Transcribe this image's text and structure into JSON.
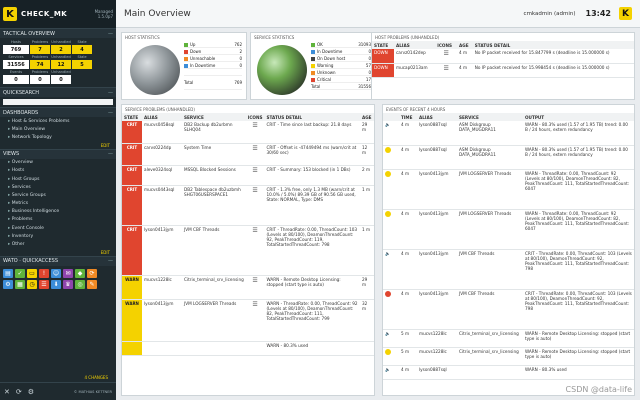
{
  "app": {
    "brand": "CHECK_MK",
    "version_line1": "Managed",
    "version_line2": "1.5.0p7"
  },
  "topbar": {
    "title": "Main Overview",
    "user": "cmkadmin (admin)",
    "clock": "13:42",
    "logo": "K"
  },
  "sidebar": {
    "tactical_title": "TACTICAL OVERVIEW",
    "tac_headers": [
      "",
      "Problems",
      "Unhandled",
      "Stale"
    ],
    "tac_rows": [
      {
        "label": "Hosts",
        "values": [
          "769",
          "7",
          "2",
          "4"
        ]
      },
      {
        "label": "Services",
        "values": [
          "31556",
          "74",
          "12",
          "5"
        ]
      },
      {
        "label": "Events",
        "values": [
          "0",
          "0",
          "0",
          ""
        ]
      }
    ],
    "tac_row_headers": [
      "Hosts",
      "Problems",
      "Unhandled",
      "Stale",
      "Services",
      "Problems",
      "Unhandled",
      "Stale",
      "Events",
      "Problems",
      "Unhandled"
    ],
    "quicksearch_title": "QUICKSEARCH",
    "dashboards_title": "DASHBOARDS",
    "dashboards": [
      "Host & Services Problems",
      "Main Overview",
      "Network Topology"
    ],
    "edit_label": "EDIT",
    "views_title": "VIEWS",
    "views": [
      "Overview",
      "Hosts",
      "Host Groups",
      "Services",
      "Service Groups",
      "Metrics",
      "Business Intelligence",
      "Problems",
      "Event Console",
      "Inventory",
      "Other"
    ],
    "quickaccess_title": "WATO · QUICKACCESS",
    "changes_label": "4 CHANGES",
    "footer_author": "© MATHIAS KETTNER"
  },
  "host_stats": {
    "title": "HOST STATISTICS",
    "rows": [
      {
        "label": "Up",
        "value": "762",
        "color": "#5fb33c"
      },
      {
        "label": "Down",
        "value": "2",
        "color": "#e0452f"
      },
      {
        "label": "Unreachable",
        "value": "0",
        "color": "#f08a24"
      },
      {
        "label": "In Downtime",
        "value": "0",
        "color": "#3c8dd8"
      },
      {
        "label": "",
        "value": "",
        "color": "#ffffff"
      },
      {
        "label": "Total",
        "value": "769",
        "color": "#ffffff"
      }
    ]
  },
  "service_stats": {
    "title": "SERVICE STATISTICS",
    "rows": [
      {
        "label": "OK",
        "value": "31093",
        "color": "#5fb33c"
      },
      {
        "label": "In Downtime",
        "value": "0",
        "color": "#3c8dd8"
      },
      {
        "label": "On Down host",
        "value": "0",
        "color": "#444444"
      },
      {
        "label": "Warning",
        "value": "57",
        "color": "#f4d200"
      },
      {
        "label": "Unknown",
        "value": "0",
        "color": "#f08a24"
      },
      {
        "label": "Critical",
        "value": "17",
        "color": "#e0452f"
      },
      {
        "label": "Total",
        "value": "31556",
        "color": "#ffffff"
      }
    ]
  },
  "host_problems": {
    "title": "HOST PROBLEMS (UNHANDLED)",
    "headers": [
      "STATE",
      "ALIAS",
      "ICONS",
      "AGE",
      "STATUS DETAIL"
    ],
    "rows": [
      {
        "state": "DOWN",
        "alias": "carvz0142dep",
        "age": "4 m",
        "detail": "No IP packet received for 15.847799 s (deadline is 15.000000 s)"
      },
      {
        "state": "DOWN",
        "alias": "mucap0213am",
        "age": "4 m",
        "detail": "No IP packet received for 15.998454 s (deadline is 15.000000 s)"
      }
    ]
  },
  "service_problems": {
    "title": "SERVICE PROBLEMS (UNHANDLED)",
    "headers": [
      "STATE",
      "ALIAS",
      "SERVICE",
      "ICONS",
      "STATUS DETAIL",
      "AGE"
    ],
    "rows": [
      {
        "state": "CRIT",
        "alias": "mucvs0458sql",
        "service": "DB2 Backup db2urbmn SLHQ04",
        "detail": "CRIT - Time since last backup: 21.8 days",
        "age": "29 m"
      },
      {
        "state": "CRIT",
        "alias": "carvs0224dp",
        "service": "System Time",
        "detail": "CRIT - Offset is -47449494 ms (warn/crit at 30/60 sec)",
        "age": "12 m"
      },
      {
        "state": "CRIT",
        "alias": "aleve0324sql",
        "service": "MSSQL Blocked Sessions",
        "detail": "CRIT - Summary: 153 blocked (in 1 DBs)",
        "age": "2 m"
      },
      {
        "state": "CRIT",
        "alias": "mucvs0443sql",
        "service": "DB2 Tablespace db2uzbmh SHGT06USERSPACE1",
        "detail": "CRIT - 1.3% free, only 1.3 MB (warn/crit at 10.0% / 5.0%) 89.39 GB of 90.56 GB used, State: NORMAL, Type: DMS",
        "age": "1 m"
      },
      {
        "state": "CRIT",
        "alias": "lyson0413jym",
        "service": "JVM CBF Threads",
        "detail": "CRIT - ThreadRate: 0.00, ThreadCount: 103 (Levels at 80/100), DeamonThreadCount: 92, PeakThreadCount: 119, TotalStartedThreadCount: 798",
        "age": "1 m"
      },
      {
        "state": "WARN",
        "alias": "mucvs1228lc",
        "service": "Citrix_terminal_srv_licensing",
        "detail": "WARN - Remote Desktop Licensing: stopped (start type is auto)",
        "age": "29 m"
      },
      {
        "state": "WARN",
        "alias": "lyson0413jym",
        "service": "JVM LOGSERVER Threads",
        "detail": "WARN - ThreadRate: 0.00, ThreadCount: 92 (Levels at 80/100), DeamonThreadCount: 82, PeakThreadCount: 111, TotalStartedThreadCount: 799",
        "age": "32 m"
      },
      {
        "state": "WARN",
        "alias": "",
        "service": "",
        "detail": "WARN - 80.3% used",
        "age": ""
      }
    ]
  },
  "events": {
    "title": "EVENTS OF RECENT 4 HOURS",
    "headers": [
      "",
      "TIME",
      "ALIAS",
      "SERVICE",
      "OUTPUT"
    ],
    "rows": [
      {
        "kind": "speaker",
        "time": "4 m",
        "alias": "lyson0887sql",
        "service": "ASM Diskgroup DATA_MUGDRA11",
        "output": "WARN - 80.3% used (1.57 of 1.95 TB) trend: 0.00 B / 24 hours, extern redundancy"
      },
      {
        "kind": "dot",
        "time": "4 m",
        "alias": "lyson0887sql",
        "service": "ASM Diskgroup DATA_MUGDRA11",
        "output": "WARN - 80.3% used (1.57 of 1.95 TB) trend: 0.00 B / 24 hours, extern redundancy"
      },
      {
        "kind": "dot",
        "time": "4 m",
        "alias": "lyson0413jym",
        "service": "JVM LOGSERVER Threads",
        "output": "WARN - ThreadRate: 0.00, ThreadCount: 92 (Levels at 80/100), DeamonThreadCount: 82, PeakThreadCount: 111, TotalStartedThreadCount: 6047"
      },
      {
        "kind": "dot",
        "time": "4 m",
        "alias": "lyson0413jym",
        "service": "JVM LOGSERVER Threads",
        "output": "WARN - ThreadRate: 0.00, ThreadCount: 92 (Levels at 80/100), DeamonThreadCount: 82, PeakThreadCount: 111, TotalStartedThreadCount: 6047"
      },
      {
        "kind": "speaker",
        "time": "4 m",
        "alias": "lyson0413jym",
        "service": "JVM CBF Threads",
        "output": "CRIT - ThreadRate: 0.00, ThreadCount: 103 (Levels at 80/100), DeamonThreadCount: 92, PeakThreadCount: 111, TotalStartedThreadCount: 798"
      },
      {
        "kind": "red",
        "time": "4 m",
        "alias": "lyson0413jym",
        "service": "JVM CBF Threads",
        "output": "CRIT - ThreadRate: 0.00, ThreadCount: 103 (Levels at 80/100), DeamonThreadCount: 92, PeakThreadCount: 111, TotalStartedThreadCount: 798"
      },
      {
        "kind": "speaker",
        "time": "5 m",
        "alias": "mucvs1228lc",
        "service": "Citrix_terminal_srv_licensing",
        "output": "WARN - Remote Desktop Licensing: stopped (start type is auto)"
      },
      {
        "kind": "dot",
        "time": "5 m",
        "alias": "mucvs1228lc",
        "service": "Citrix_terminal_srv_licensing",
        "output": "WARN - Remote Desktop Licensing: stopped (start type is auto)"
      },
      {
        "kind": "speaker",
        "time": "4 m",
        "alias": "lyson0887sql",
        "service": "",
        "output": "WARN - 80.3% used"
      }
    ]
  },
  "watermark": "CSDN @data-life"
}
